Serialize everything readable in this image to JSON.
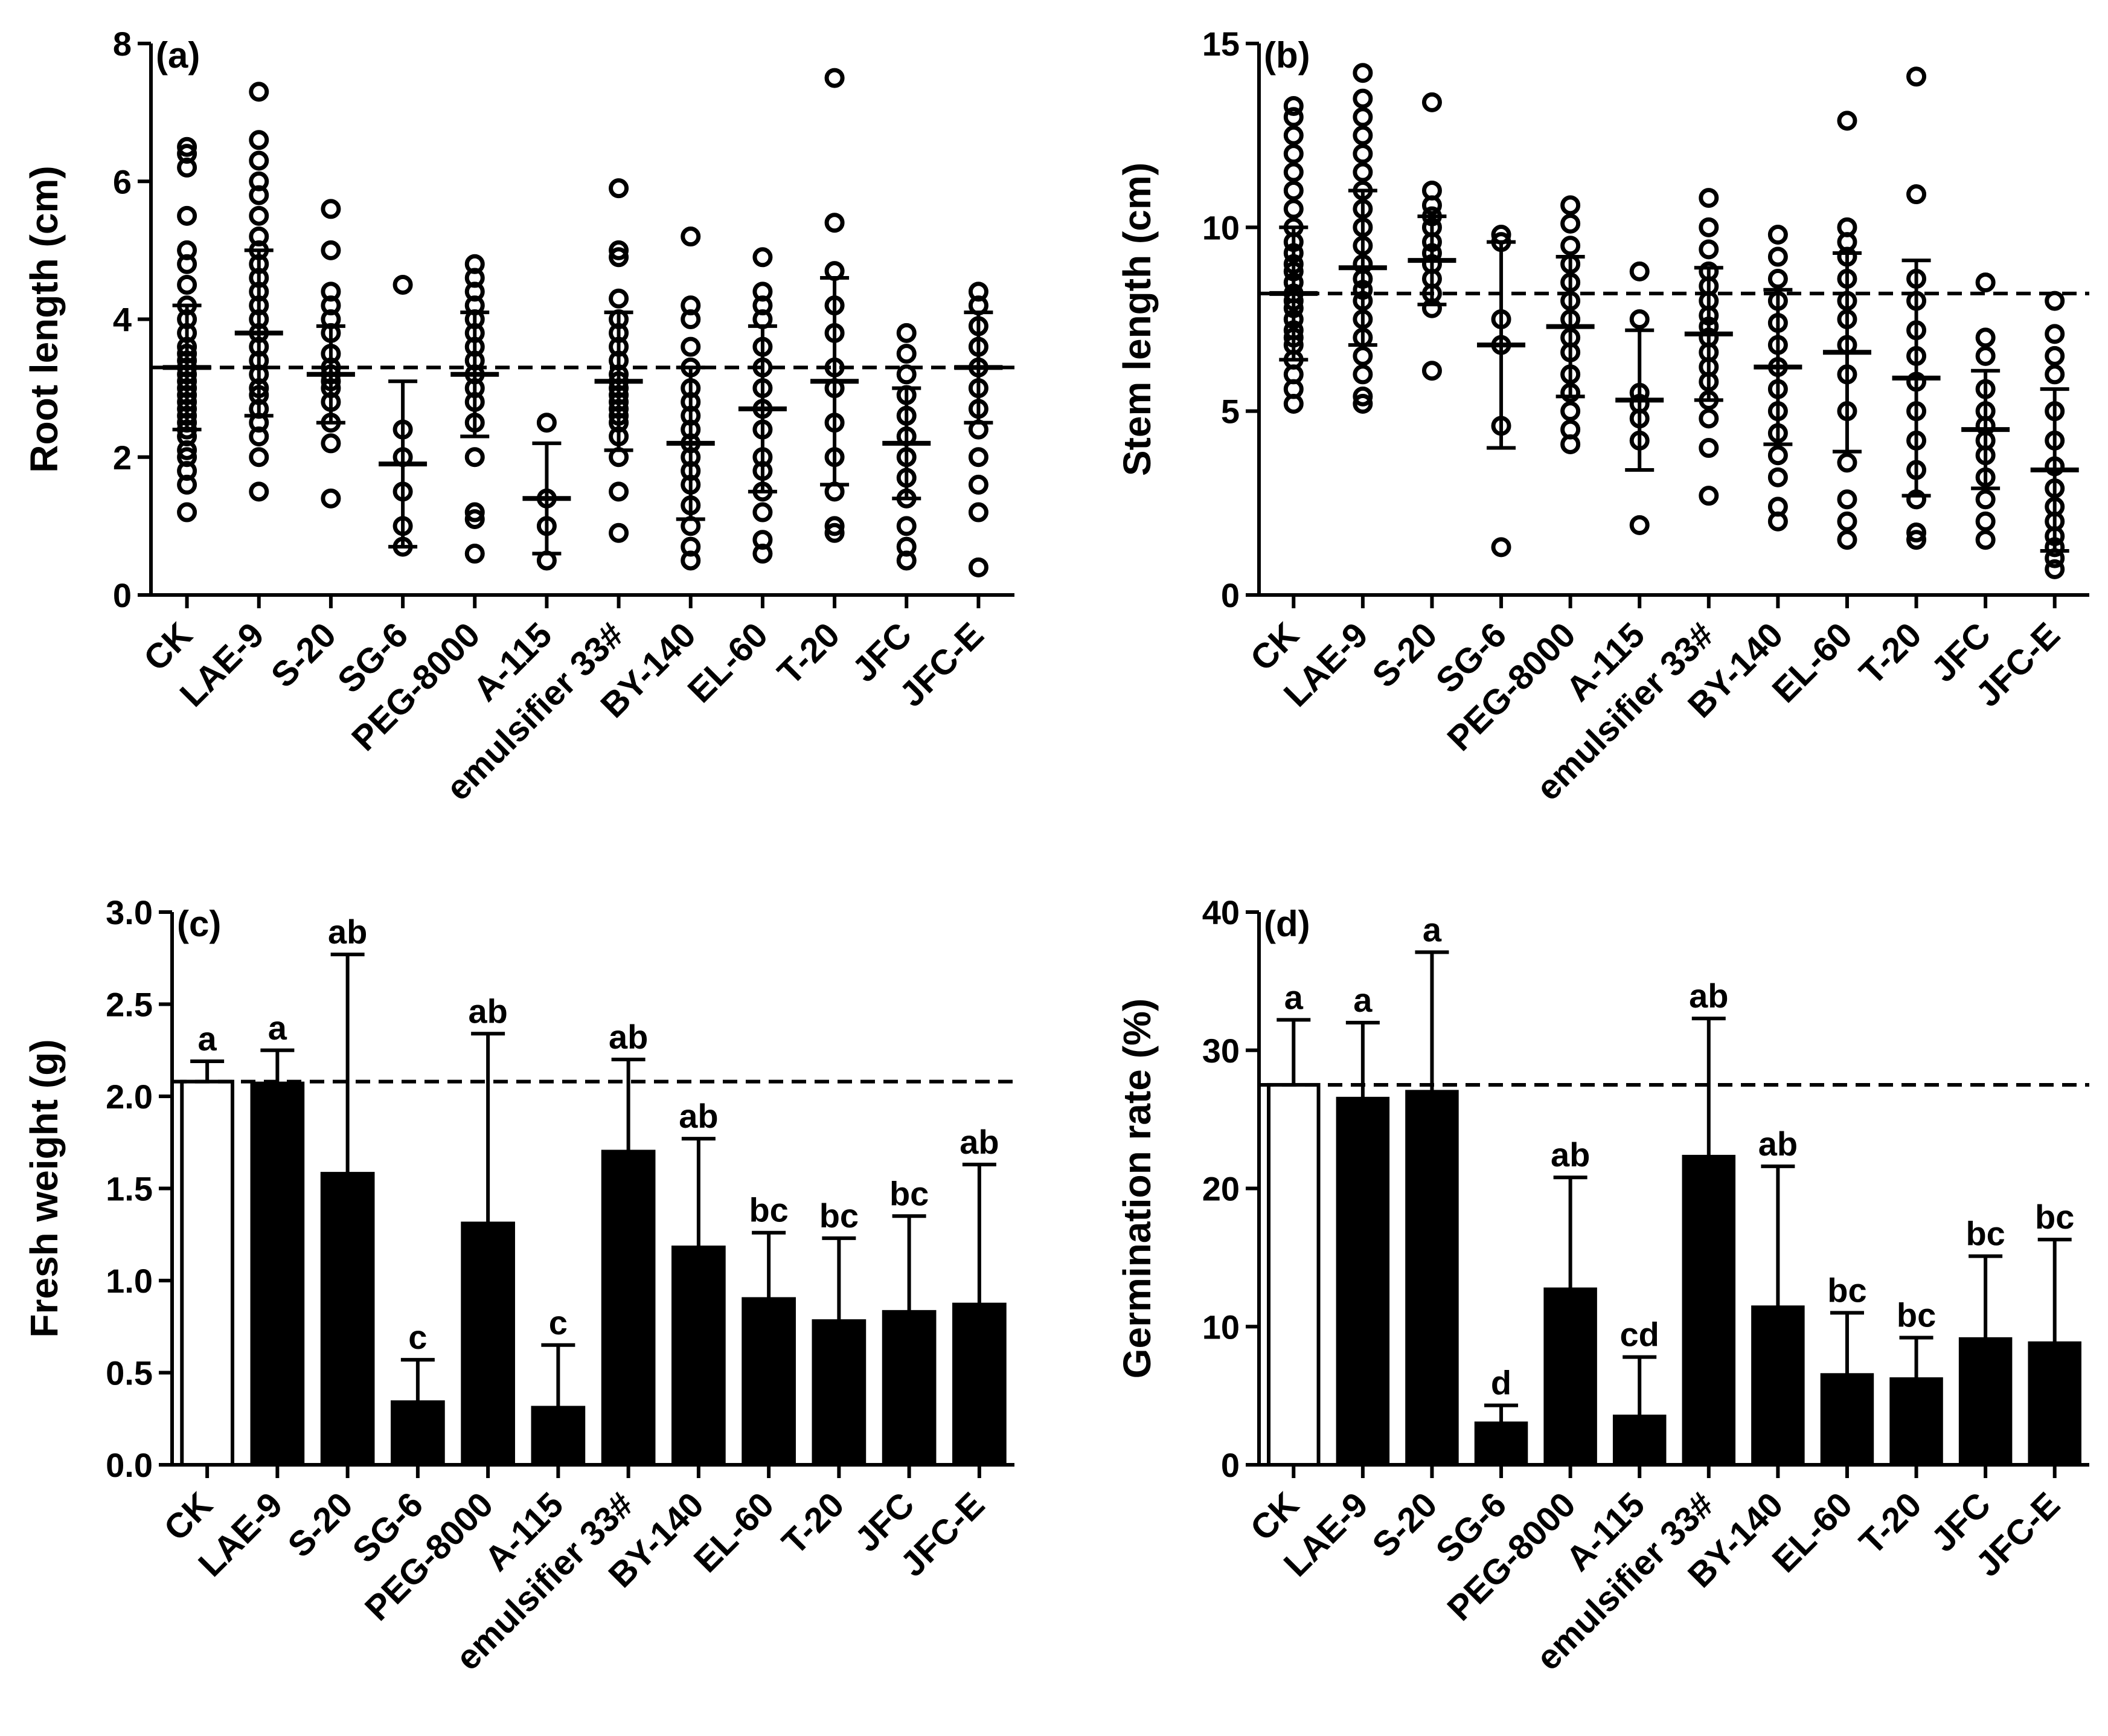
{
  "chart_data": [
    {
      "type": "scatter",
      "panel_label": "(a)",
      "ylabel": "Root length (cm)",
      "xlabel": "",
      "ylim": [
        0,
        8
      ],
      "yticks": [
        0,
        2,
        4,
        6,
        8
      ],
      "reference_line": 3.3,
      "categories": [
        "CK",
        "LAE-9",
        "S-20",
        "SG-6",
        "PEG-8000",
        "A-115",
        "emulsifier 33#",
        "BY-140",
        "EL-60",
        "T-20",
        "JFC",
        "JFC-E"
      ],
      "means": [
        3.3,
        3.8,
        3.2,
        1.9,
        3.2,
        1.4,
        3.1,
        2.2,
        2.7,
        3.1,
        2.2,
        3.3
      ],
      "sd": [
        0.9,
        1.2,
        0.7,
        1.2,
        0.9,
        0.8,
        1.0,
        1.1,
        1.2,
        1.5,
        0.8,
        0.8
      ],
      "points": [
        [
          1.2,
          1.6,
          1.8,
          2.0,
          2.1,
          2.3,
          2.4,
          2.5,
          2.6,
          2.7,
          2.8,
          2.9,
          3.0,
          3.1,
          3.2,
          3.3,
          3.4,
          3.5,
          3.6,
          3.8,
          4.0,
          4.2,
          4.5,
          4.8,
          5.0,
          5.5,
          6.2,
          6.4,
          6.5
        ],
        [
          1.5,
          2.0,
          2.3,
          2.5,
          2.7,
          2.9,
          3.0,
          3.2,
          3.4,
          3.6,
          3.8,
          4.0,
          4.2,
          4.4,
          4.6,
          4.8,
          5.0,
          5.2,
          5.5,
          5.8,
          6.0,
          6.3,
          6.6,
          7.3
        ],
        [
          1.4,
          2.2,
          2.5,
          2.8,
          3.0,
          3.1,
          3.2,
          3.3,
          3.5,
          3.8,
          4.0,
          4.2,
          4.4,
          5.0,
          5.6
        ],
        [
          0.7,
          1.0,
          1.5,
          2.0,
          2.4,
          4.5
        ],
        [
          0.6,
          1.1,
          1.2,
          2.0,
          2.5,
          2.8,
          3.0,
          3.2,
          3.4,
          3.6,
          3.8,
          4.0,
          4.2,
          4.4,
          4.6,
          4.8
        ],
        [
          0.5,
          1.0,
          1.4,
          2.5
        ],
        [
          0.9,
          1.5,
          2.0,
          2.3,
          2.5,
          2.6,
          2.7,
          2.8,
          2.9,
          3.0,
          3.1,
          3.2,
          3.4,
          3.6,
          3.8,
          4.0,
          4.3,
          4.9,
          5.0,
          5.9
        ],
        [
          0.5,
          0.7,
          1.0,
          1.3,
          1.6,
          1.8,
          2.0,
          2.2,
          2.4,
          2.6,
          2.8,
          3.0,
          3.3,
          3.6,
          4.0,
          4.2,
          5.2
        ],
        [
          0.6,
          0.8,
          1.2,
          1.5,
          1.8,
          2.0,
          2.4,
          2.7,
          3.0,
          3.3,
          3.6,
          4.0,
          4.2,
          4.4,
          4.9
        ],
        [
          0.9,
          1.0,
          1.5,
          2.0,
          2.5,
          3.0,
          3.3,
          3.8,
          4.2,
          4.7,
          5.4,
          7.5
        ],
        [
          0.5,
          0.7,
          1.0,
          1.4,
          1.7,
          2.0,
          2.3,
          2.6,
          2.9,
          3.2,
          3.5,
          3.8
        ],
        [
          0.4,
          1.2,
          1.6,
          2.0,
          2.4,
          2.7,
          3.0,
          3.3,
          3.6,
          3.9,
          4.2,
          4.4
        ]
      ]
    },
    {
      "type": "scatter",
      "panel_label": "(b)",
      "ylabel": "Stem length (cm)",
      "xlabel": "",
      "ylim": [
        0,
        15
      ],
      "yticks": [
        0,
        5,
        10,
        15
      ],
      "reference_line": 8.2,
      "categories": [
        "CK",
        "LAE-9",
        "S-20",
        "SG-6",
        "PEG-8000",
        "A-115",
        "emulsifier 33#",
        "BY-140",
        "EL-60",
        "T-20",
        "JFC",
        "JFC-E"
      ],
      "means": [
        8.2,
        8.9,
        9.1,
        6.8,
        7.3,
        5.3,
        7.1,
        6.2,
        6.6,
        5.9,
        4.5,
        3.4
      ],
      "sd": [
        1.8,
        2.1,
        1.2,
        2.8,
        1.9,
        1.9,
        1.8,
        2.1,
        2.7,
        3.2,
        1.6,
        2.2
      ],
      "points": [
        [
          5.2,
          5.6,
          6.0,
          6.4,
          6.8,
          7.0,
          7.2,
          7.5,
          7.8,
          8.0,
          8.2,
          8.5,
          8.8,
          9.0,
          9.3,
          9.6,
          10.0,
          10.5,
          11.0,
          11.5,
          12.0,
          12.5,
          13.0,
          13.3
        ],
        [
          5.2,
          5.4,
          6.0,
          6.5,
          7.0,
          7.5,
          8.0,
          8.3,
          8.6,
          9.0,
          9.5,
          10.0,
          10.5,
          11.0,
          11.5,
          12.0,
          12.5,
          13.0,
          13.5,
          14.2
        ],
        [
          6.1,
          7.8,
          8.2,
          8.6,
          9.0,
          9.3,
          9.6,
          10.0,
          10.3,
          10.6,
          11.0,
          13.4
        ],
        [
          1.3,
          4.6,
          6.8,
          7.5,
          9.6,
          9.8
        ],
        [
          4.1,
          4.5,
          5.0,
          5.5,
          6.0,
          6.6,
          7.0,
          7.5,
          8.0,
          8.5,
          9.0,
          9.5,
          10.1,
          10.6
        ],
        [
          1.9,
          4.2,
          4.8,
          5.2,
          5.5,
          7.5,
          8.8
        ],
        [
          2.7,
          4.0,
          4.8,
          5.3,
          5.8,
          6.2,
          6.6,
          7.0,
          7.3,
          7.6,
          8.0,
          8.4,
          8.8,
          9.4,
          10.0,
          10.8
        ],
        [
          2.0,
          2.4,
          3.2,
          3.8,
          4.4,
          5.0,
          5.6,
          6.2,
          6.8,
          7.4,
          8.0,
          8.6,
          9.2,
          9.8
        ],
        [
          1.5,
          2.0,
          2.6,
          3.6,
          5.0,
          6.0,
          6.8,
          7.5,
          8.0,
          8.6,
          9.2,
          9.6,
          10.0,
          12.9
        ],
        [
          1.5,
          1.7,
          2.6,
          3.4,
          4.2,
          5.0,
          5.8,
          6.5,
          7.2,
          8.0,
          8.6,
          10.9,
          14.1
        ],
        [
          1.5,
          2.0,
          2.6,
          3.2,
          3.8,
          4.2,
          4.6,
          5.0,
          5.6,
          6.5,
          7.0,
          8.5
        ],
        [
          0.7,
          1.0,
          1.3,
          1.6,
          2.0,
          2.4,
          2.9,
          3.5,
          4.2,
          5.0,
          6.0,
          6.5,
          7.1,
          8.0
        ]
      ]
    },
    {
      "type": "bar",
      "panel_label": "(c)",
      "ylabel": "Fresh weight (g)",
      "xlabel": "",
      "ylim": [
        0,
        3.0
      ],
      "yticks": [
        "0.0",
        "0.5",
        "1.0",
        "1.5",
        "2.0",
        "2.5",
        "3.0"
      ],
      "reference_line": 2.08,
      "categories": [
        "CK",
        "LAE-9",
        "S-20",
        "SG-6",
        "PEG-8000",
        "A-115",
        "emulsifier 33#",
        "BY-140",
        "EL-60",
        "T-20",
        "JFC",
        "JFC-E"
      ],
      "values": [
        2.08,
        2.07,
        1.58,
        0.34,
        1.31,
        0.31,
        1.7,
        1.18,
        0.9,
        0.78,
        0.83,
        0.87
      ],
      "error_upper": [
        2.19,
        2.25,
        2.77,
        0.57,
        2.34,
        0.65,
        2.2,
        1.77,
        1.26,
        1.23,
        1.35,
        1.63
      ],
      "letters": [
        "a",
        "a",
        "ab",
        "c",
        "ab",
        "c",
        "ab",
        "ab",
        "bc",
        "bc",
        "bc",
        "ab"
      ],
      "fills": [
        "#ffffff",
        "#000000",
        "#000000",
        "#000000",
        "#000000",
        "#000000",
        "#000000",
        "#000000",
        "#000000",
        "#000000",
        "#000000",
        "#000000"
      ]
    },
    {
      "type": "bar",
      "panel_label": "(d)",
      "ylabel": "Germination rate (%)",
      "xlabel": "",
      "ylim": [
        0,
        40
      ],
      "yticks": [
        "0",
        "10",
        "20",
        "30",
        "40"
      ],
      "reference_line": 27.5,
      "categories": [
        "CK",
        "LAE-9",
        "S-20",
        "SG-6",
        "PEG-8000",
        "A-115",
        "emulsifier 33#",
        "BY-140",
        "EL-60",
        "T-20",
        "JFC",
        "JFC-E"
      ],
      "values": [
        27.5,
        26.5,
        27.0,
        3.0,
        12.7,
        3.5,
        22.3,
        11.4,
        6.5,
        6.2,
        9.1,
        8.8
      ],
      "error_upper": [
        32.2,
        32.0,
        37.1,
        4.3,
        20.8,
        7.8,
        32.3,
        21.6,
        11.0,
        9.2,
        15.1,
        16.3
      ],
      "letters": [
        "a",
        "a",
        "a",
        "d",
        "ab",
        "cd",
        "ab",
        "ab",
        "bc",
        "bc",
        "bc",
        "bc"
      ],
      "fills": [
        "#ffffff",
        "#000000",
        "#000000",
        "#000000",
        "#000000",
        "#000000",
        "#000000",
        "#000000",
        "#000000",
        "#000000",
        "#000000",
        "#000000"
      ]
    }
  ]
}
